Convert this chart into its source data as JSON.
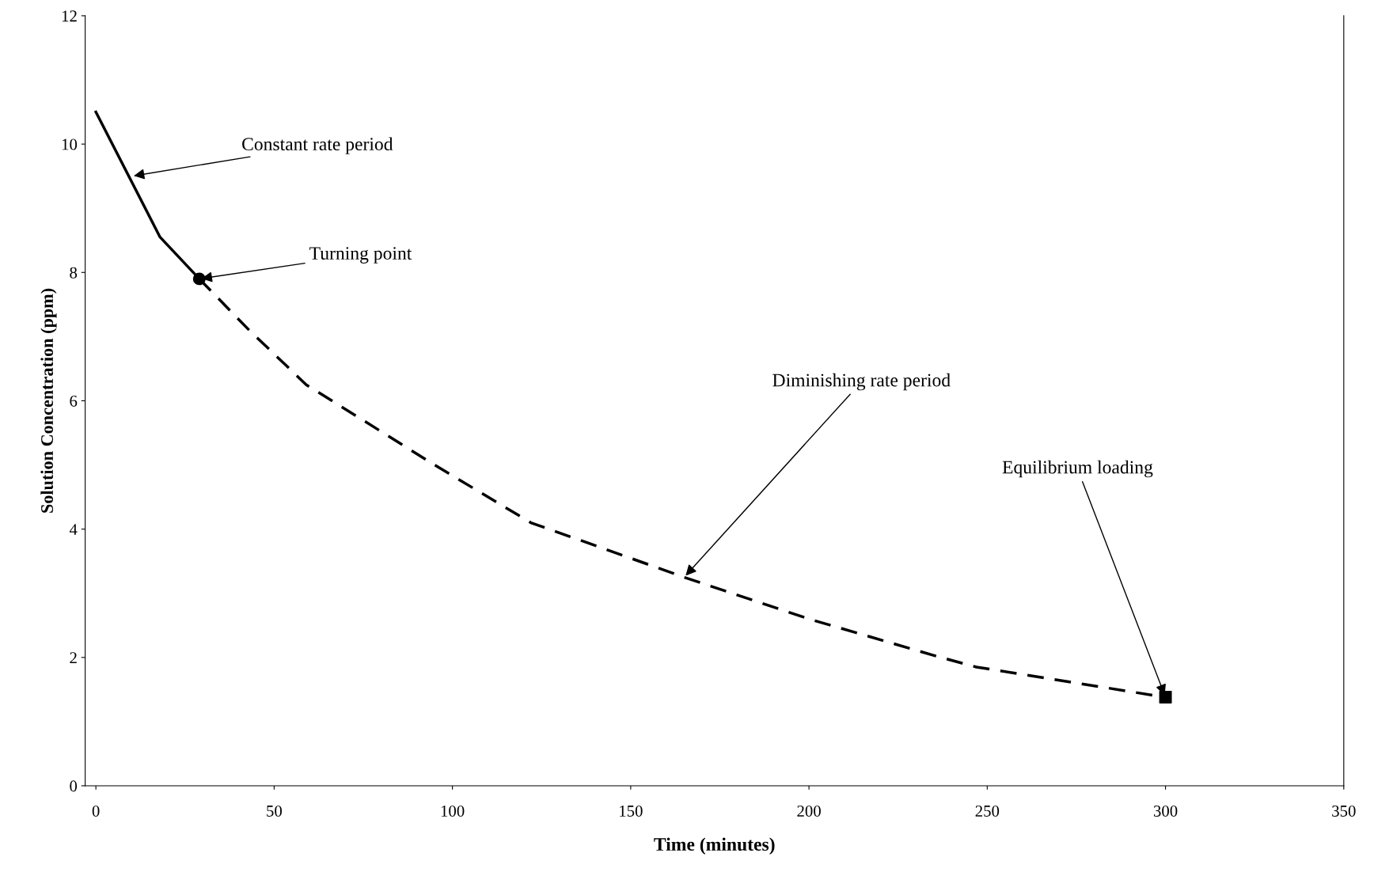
{
  "chart_data": {
    "type": "line",
    "xlabel": "Time (minutes)",
    "ylabel": "Solution Concentration (ppm)",
    "series": [
      {
        "color": "#000000",
        "line_style": "solid",
        "x": [
          0,
          18,
          29
        ],
        "values": [
          10.5,
          8.55,
          7.9
        ]
      },
      {
        "color": "#000000",
        "line_style": "dashed",
        "x": [
          29,
          43,
          59,
          95,
          122,
          165,
          200,
          237,
          247,
          300
        ],
        "values": [
          7.9,
          7.1,
          6.25,
          5.0,
          4.1,
          3.25,
          2.6,
          2.0,
          1.85,
          1.38
        ]
      },
      {
        "type": "scatter",
        "color": "#000000",
        "marker": "circle",
        "x": [
          29
        ],
        "values": [
          7.9
        ]
      },
      {
        "type": "scatter",
        "color": "#000000",
        "marker": "square",
        "x": [
          300
        ],
        "values": [
          1.38
        ]
      }
    ],
    "annotations": [
      {
        "text": "Constant rate period",
        "x": 10,
        "y": 9.5
      },
      {
        "text": "Turning point",
        "x": 29,
        "y": 7.9
      },
      {
        "text": "Diminishing rate period",
        "x": 165,
        "y": 3.25
      },
      {
        "text": "Equilibrium loading",
        "x": 300,
        "y": 1.38
      }
    ],
    "xlim": [
      -3,
      350
    ],
    "xticks": [
      0,
      50,
      100,
      150,
      200,
      250,
      300,
      350
    ],
    "ylim": [
      0,
      12
    ],
    "yticks": [
      0,
      2,
      4,
      6,
      8,
      10,
      12
    ],
    "grid": false,
    "legend": false
  }
}
